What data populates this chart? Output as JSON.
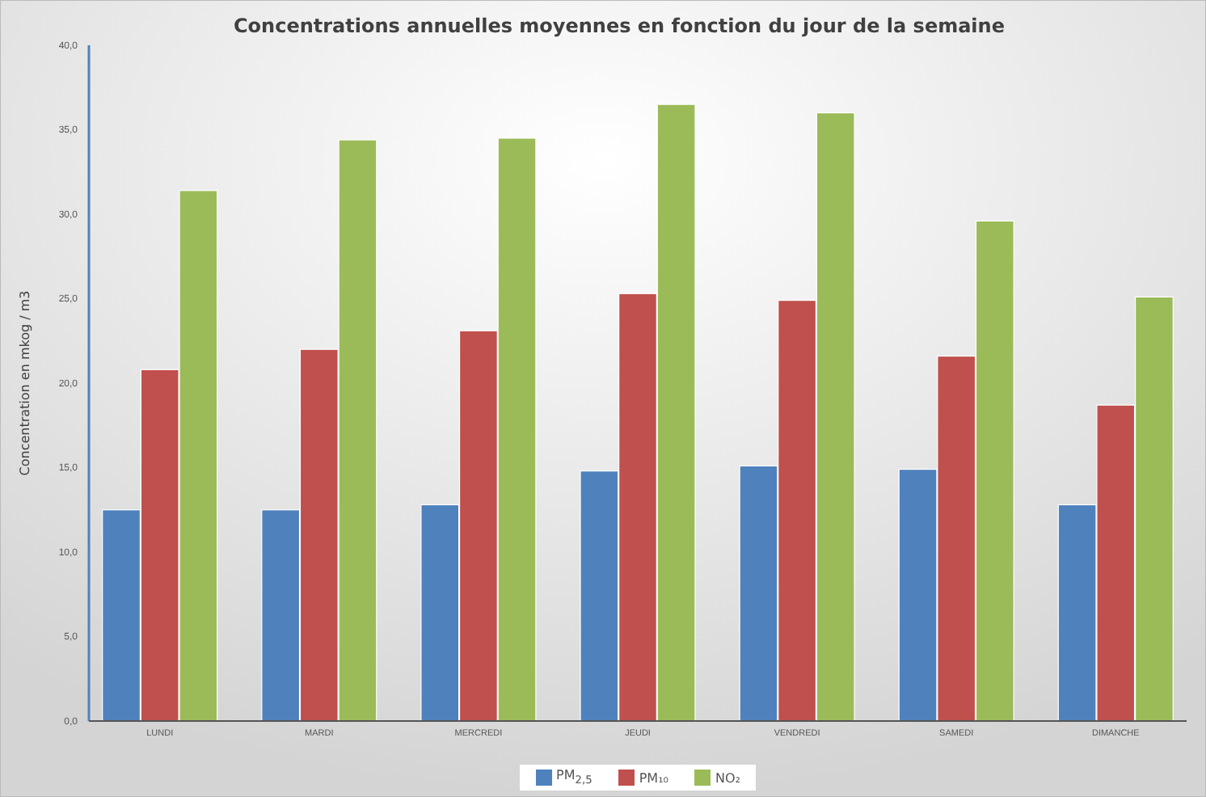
{
  "chart_data": {
    "type": "bar",
    "title": "Concentrations annuelles moyennes en fonction du jour de la semaine",
    "ylabel": "Concentration en mkog / m3",
    "categories": [
      "LUNDI",
      "MARDI",
      "MERCREDI",
      "JEUDI",
      "VENDREDI",
      "SAMEDI",
      "DIMANCHE"
    ],
    "series": [
      {
        "name": "PM$_{2,5}$",
        "color": "#4f81bd",
        "values": [
          12.5,
          12.5,
          12.8,
          14.8,
          15.1,
          14.9,
          12.8
        ]
      },
      {
        "name": "PM₁₀",
        "color": "#c0504d",
        "values": [
          20.8,
          22.0,
          23.1,
          25.3,
          24.9,
          21.6,
          18.7
        ]
      },
      {
        "name": "NO₂",
        "color": "#9bbb59",
        "values": [
          31.4,
          34.4,
          34.5,
          36.5,
          36.0,
          29.6,
          25.1
        ]
      }
    ],
    "ylim": [
      0,
      40
    ],
    "yticks": [
      {
        "value": 0,
        "label": "0,0"
      },
      {
        "value": 5,
        "label": "5,0"
      },
      {
        "value": 10,
        "label": "10,0"
      },
      {
        "value": 15,
        "label": "15,0"
      },
      {
        "value": 20,
        "label": "20,0"
      },
      {
        "value": 25,
        "label": "25,0"
      },
      {
        "value": 30,
        "label": "30,0"
      },
      {
        "value": 35,
        "label": "35,0"
      },
      {
        "value": 40,
        "label": "40,0"
      }
    ],
    "grid": false,
    "legend": "bottom"
  }
}
